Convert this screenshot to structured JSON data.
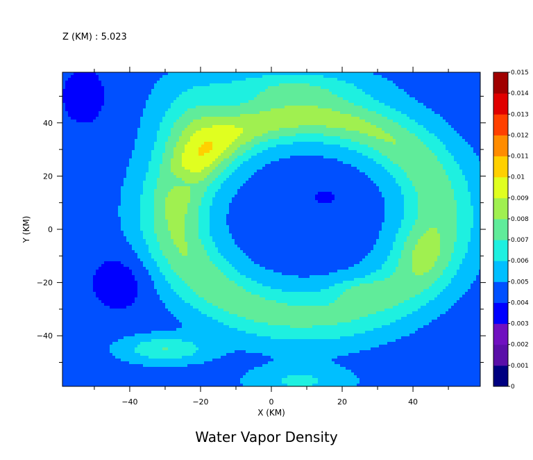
{
  "chart_data": {
    "type": "heatmap",
    "title": "Water Vapor Density",
    "subtitle": "Z (KM) : 5.023",
    "xlabel": "X (KM)",
    "ylabel": "Y (KM)",
    "xlim": [
      -59,
      59
    ],
    "ylim": [
      -59,
      59
    ],
    "xticks": [
      -40,
      -20,
      0,
      20,
      40
    ],
    "xtick_labels": [
      "−40",
      "−20",
      "0",
      "20",
      "40"
    ],
    "yticks": [
      40,
      20,
      0,
      -20,
      -40
    ],
    "ytick_labels": [
      "40",
      "20",
      "0",
      "−20",
      "−40"
    ],
    "colorbar": {
      "levels": [
        0,
        0.001,
        0.002,
        0.003,
        0.004,
        0.005,
        0.006,
        0.007,
        0.008,
        0.009,
        0.01,
        0.011,
        0.012,
        0.013,
        0.014,
        0.015
      ],
      "labels": [
        "0",
        "0.001",
        "0.002",
        "0.003",
        "0.004",
        "0.005",
        "0.006",
        "0.007",
        "0.008",
        "0.009",
        "0.01",
        "0.011",
        "0.012",
        "0.013",
        "0.014",
        "0.015"
      ],
      "colors": [
        "#000080",
        "#5a0fa8",
        "#7010c0",
        "#0000ff",
        "#0050ff",
        "#00bfff",
        "#1ef0e0",
        "#60ec9a",
        "#a0f050",
        "#e0ff20",
        "#ffd000",
        "#ff8c00",
        "#ff4000",
        "#e00000",
        "#a00000"
      ]
    },
    "field_description": "Ring of higher water vapor density (0.006–0.009) around a dry core (~0.004) centered near (10, 5) km.",
    "grid": false
  }
}
